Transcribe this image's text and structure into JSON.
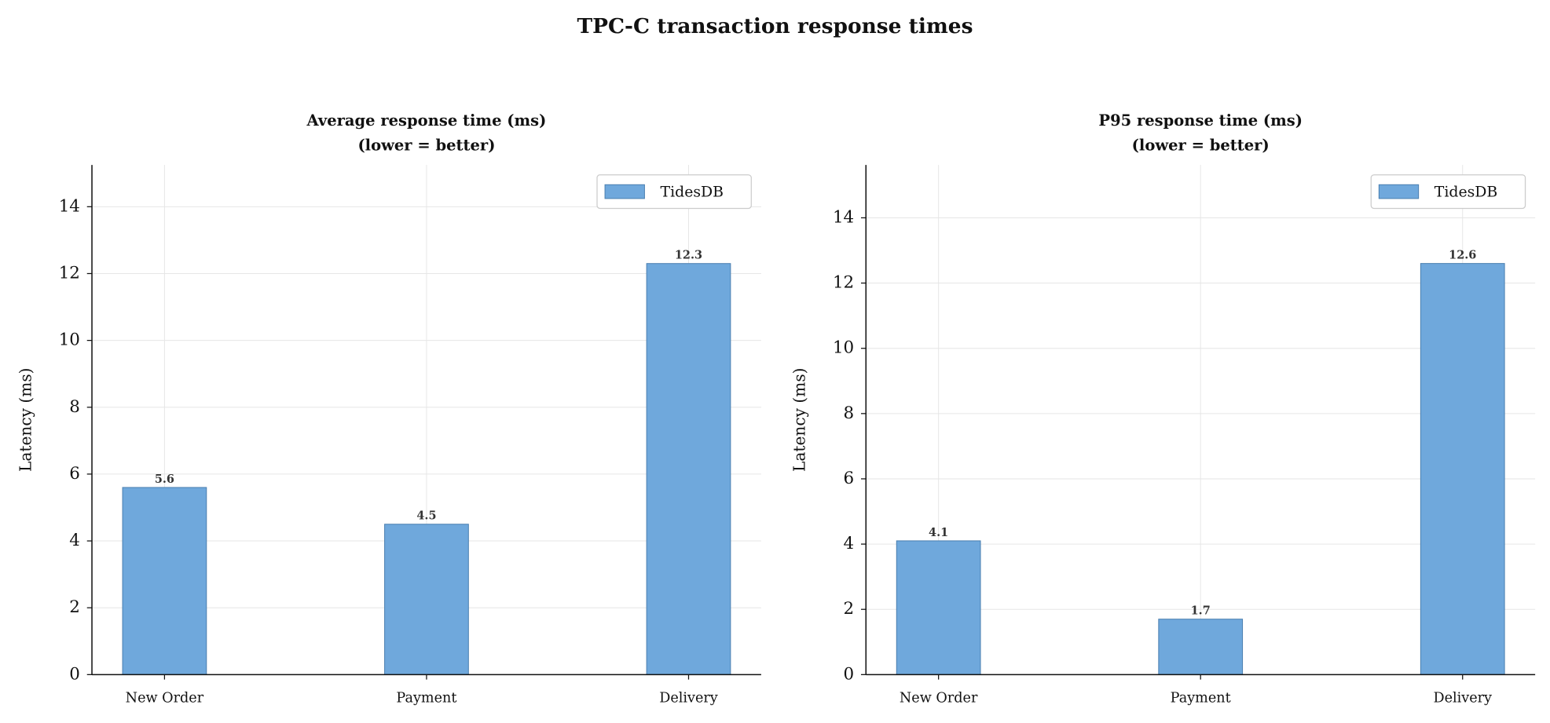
{
  "title": "TPC-C transaction response times",
  "chart_data": [
    {
      "type": "bar",
      "title": [
        "Average response time (ms)",
        "(lower = better)"
      ],
      "ylabel": "Latency (ms)",
      "categories": [
        "New Order",
        "Payment",
        "Delivery"
      ],
      "series": [
        {
          "name": "TidesDB",
          "color": "#6fa8dc",
          "values": [
            5.6,
            4.5,
            12.3
          ]
        }
      ],
      "ylim": [
        0,
        15.25
      ],
      "yticks": [
        0,
        2,
        4,
        6,
        8,
        10,
        12,
        14
      ],
      "grid": true,
      "legend": "upper right"
    },
    {
      "type": "bar",
      "title": [
        "P95 response time (ms)",
        "(lower = better)"
      ],
      "ylabel": "Latency (ms)",
      "categories": [
        "New Order",
        "Payment",
        "Delivery"
      ],
      "series": [
        {
          "name": "TidesDB",
          "color": "#6fa8dc",
          "values": [
            4.1,
            1.7,
            12.6
          ]
        }
      ],
      "ylim": [
        0,
        15.62
      ],
      "yticks": [
        0,
        2,
        4,
        6,
        8,
        10,
        12,
        14
      ],
      "grid": true,
      "legend": "upper right"
    }
  ]
}
